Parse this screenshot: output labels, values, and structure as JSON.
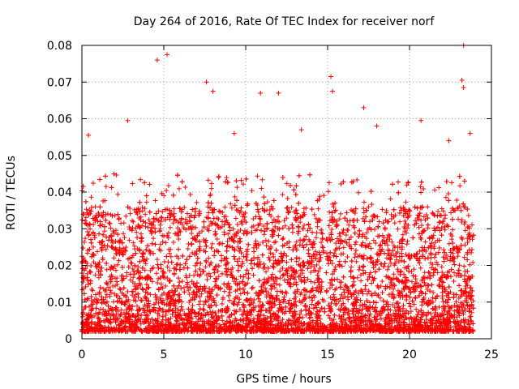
{
  "chart_data": {
    "type": "scatter",
    "title": "Day 264 of 2016, Rate Of TEC Index for receiver norf",
    "xlabel": "GPS time / hours",
    "ylabel": "ROTI / TECUs",
    "xlim": [
      0,
      25
    ],
    "ylim": [
      0,
      0.08
    ],
    "x_ticks": [
      0,
      5,
      10,
      15,
      20,
      25
    ],
    "y_ticks": [
      0,
      0.01,
      0.02,
      0.03,
      0.04,
      0.05,
      0.06,
      0.07,
      0.08
    ],
    "x_tick_labels": [
      "0",
      "5",
      "10",
      "15",
      "20",
      "25"
    ],
    "y_tick_labels": [
      "0",
      "0.01",
      "0.02",
      "0.03",
      "0.04",
      "0.05",
      "0.06",
      "0.07",
      "0.08"
    ],
    "grid": true,
    "marker": "+",
    "color": "#ff0000",
    "data_range_x": [
      0.0,
      23.9
    ],
    "notable_points": [
      {
        "x": 4.6,
        "y": 0.076
      },
      {
        "x": 5.2,
        "y": 0.0775
      },
      {
        "x": 7.6,
        "y": 0.07
      },
      {
        "x": 8.0,
        "y": 0.0675
      },
      {
        "x": 10.9,
        "y": 0.067
      },
      {
        "x": 12.0,
        "y": 0.067
      },
      {
        "x": 15.2,
        "y": 0.0715
      },
      {
        "x": 15.3,
        "y": 0.0675
      },
      {
        "x": 17.2,
        "y": 0.063
      },
      {
        "x": 20.7,
        "y": 0.0595
      },
      {
        "x": 23.3,
        "y": 0.08
      },
      {
        "x": 23.2,
        "y": 0.0705
      },
      {
        "x": 23.3,
        "y": 0.0685
      },
      {
        "x": 23.7,
        "y": 0.056
      },
      {
        "x": 0.4,
        "y": 0.0555
      },
      {
        "x": 2.8,
        "y": 0.0595
      },
      {
        "x": 9.3,
        "y": 0.056
      },
      {
        "x": 13.4,
        "y": 0.057
      },
      {
        "x": 18.0,
        "y": 0.058
      },
      {
        "x": 22.4,
        "y": 0.054
      }
    ]
  }
}
